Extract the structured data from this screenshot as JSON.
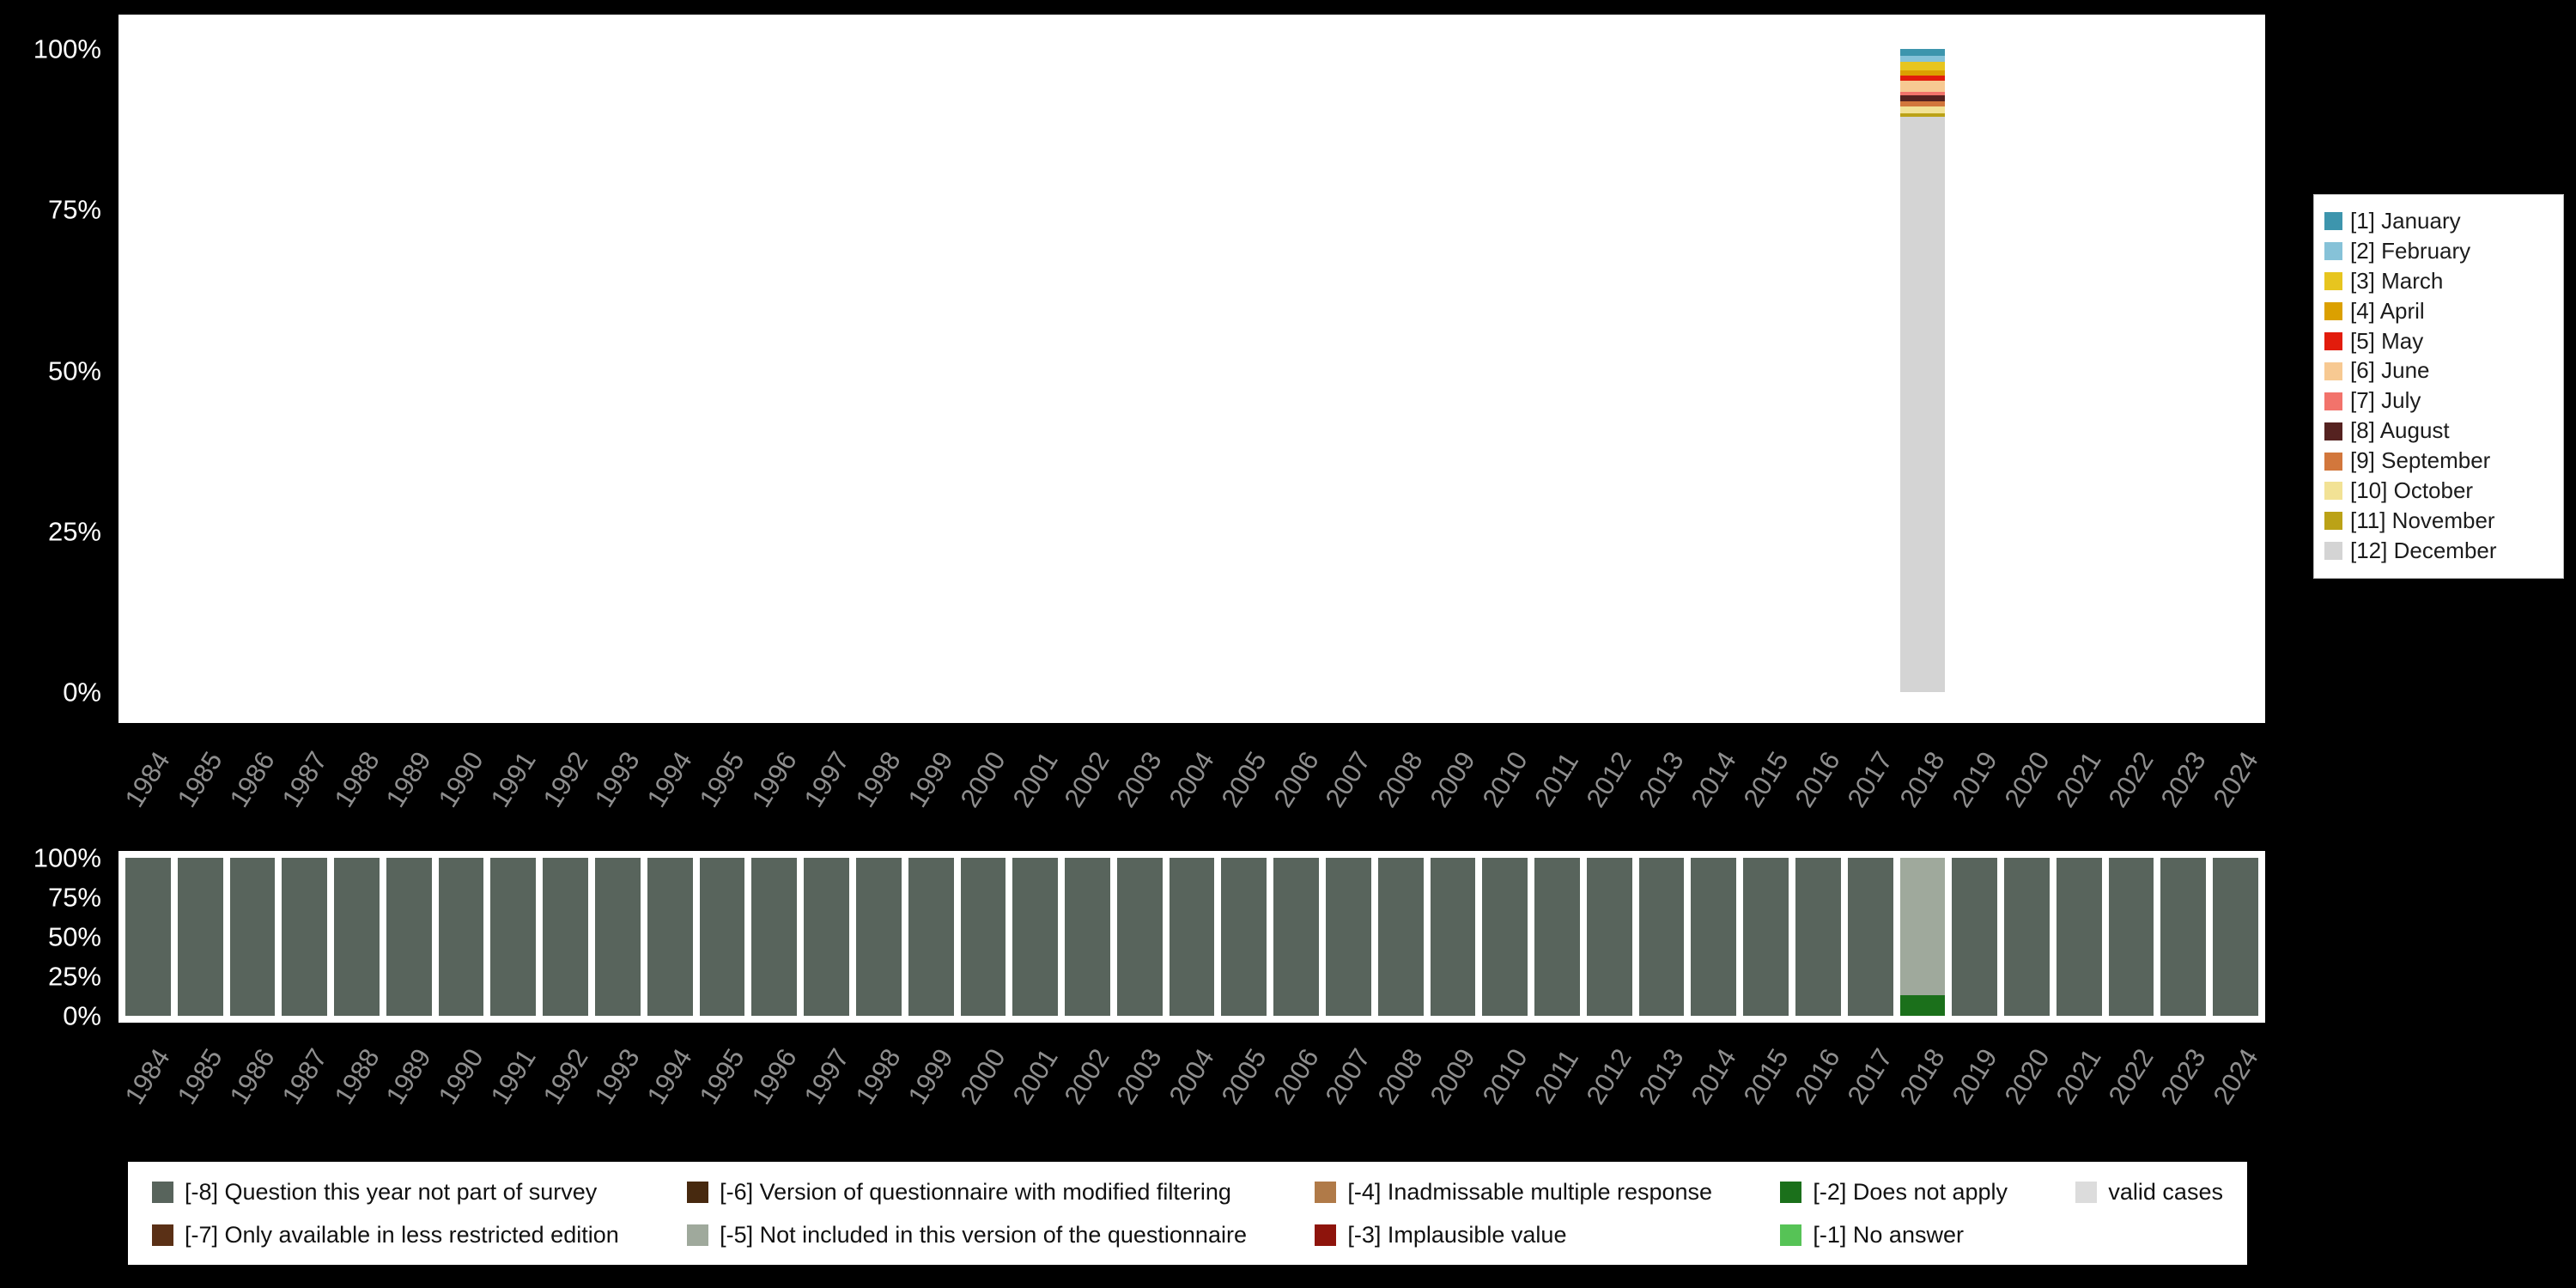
{
  "colors": {
    "background": "#000000",
    "panel": "#ffffff",
    "y_tick_text": "#ffffff",
    "year_label_text": "#8f8f8f"
  },
  "years": [
    "1984",
    "1985",
    "1986",
    "1987",
    "1988",
    "1989",
    "1990",
    "1991",
    "1992",
    "1993",
    "1994",
    "1995",
    "1996",
    "1997",
    "1998",
    "1999",
    "2000",
    "2001",
    "2002",
    "2003",
    "2004",
    "2005",
    "2006",
    "2007",
    "2008",
    "2009",
    "2010",
    "2011",
    "2012",
    "2013",
    "2014",
    "2015",
    "2016",
    "2017",
    "2018",
    "2019",
    "2020",
    "2021",
    "2022",
    "2023",
    "2024"
  ],
  "months_legend": [
    {
      "label": "[1] January",
      "color": "#3d95ad"
    },
    {
      "label": "[2] February",
      "color": "#86c2d8"
    },
    {
      "label": "[3] March",
      "color": "#e7c51f"
    },
    {
      "label": "[4] April",
      "color": "#dba000"
    },
    {
      "label": "[5] May",
      "color": "#e21c0c"
    },
    {
      "label": "[6] June",
      "color": "#f7c992"
    },
    {
      "label": "[7] July",
      "color": "#f2736b"
    },
    {
      "label": "[8] August",
      "color": "#552220"
    },
    {
      "label": "[9] September",
      "color": "#d2773c"
    },
    {
      "label": "[10] October",
      "color": "#f2e295"
    },
    {
      "label": "[11] November",
      "color": "#bba217"
    },
    {
      "label": "[12] December",
      "color": "#d4d4d4"
    }
  ],
  "missing_legend": [
    {
      "label": "[-8] Question this year not part of survey",
      "color": "#58645c"
    },
    {
      "label": "[-7] Only available in less restricted edition",
      "color": "#5a3016"
    },
    {
      "label": "[-6] Version of questionnaire with modified filtering",
      "color": "#47290f"
    },
    {
      "label": "[-5] Not included in this version of the questionnaire",
      "color": "#9fa99c"
    },
    {
      "label": "[-4] Inadmissable multiple response",
      "color": "#b07a48"
    },
    {
      "label": "[-3] Implausible value",
      "color": "#8e140c"
    },
    {
      "label": "[-2] Does not apply",
      "color": "#1b701b"
    },
    {
      "label": "[-1] No answer",
      "color": "#56c356"
    },
    {
      "label": "valid cases",
      "color": "#dcdcdc"
    }
  ],
  "chart_data": [
    {
      "type": "bar",
      "stacked": true,
      "percent_scale": true,
      "title": "",
      "xlabel": "",
      "ylabel": "",
      "ylim": [
        0,
        100
      ],
      "y_ticks": [
        "100%",
        "75%",
        "50%",
        "25%",
        "0%"
      ],
      "legend_position": "right",
      "categories": [
        "1984",
        "1985",
        "1986",
        "1987",
        "1988",
        "1989",
        "1990",
        "1991",
        "1992",
        "1993",
        "1994",
        "1995",
        "1996",
        "1997",
        "1998",
        "1999",
        "2000",
        "2001",
        "2002",
        "2003",
        "2004",
        "2005",
        "2006",
        "2007",
        "2008",
        "2009",
        "2010",
        "2011",
        "2012",
        "2013",
        "2014",
        "2015",
        "2016",
        "2017",
        "2018",
        "2019",
        "2020",
        "2021",
        "2022",
        "2023",
        "2024"
      ],
      "bars": {
        "2018": [
          {
            "label": "[1] January",
            "pct": 1.0
          },
          {
            "label": "[2] February",
            "pct": 1.0
          },
          {
            "label": "[3] March",
            "pct": 1.3
          },
          {
            "label": "[4] April",
            "pct": 0.8
          },
          {
            "label": "[5] May",
            "pct": 0.8
          },
          {
            "label": "[6] June",
            "pct": 1.8
          },
          {
            "label": "[7] July",
            "pct": 0.5
          },
          {
            "label": "[8] August",
            "pct": 1.0
          },
          {
            "label": "[9] September",
            "pct": 0.8
          },
          {
            "label": "[10] October",
            "pct": 1.0
          },
          {
            "label": "[11] November",
            "pct": 0.5
          },
          {
            "label": "[12] December",
            "pct": 89.5
          }
        ]
      }
    },
    {
      "type": "bar",
      "stacked": true,
      "percent_scale": true,
      "title": "",
      "xlabel": "",
      "ylabel": "",
      "ylim": [
        0,
        100
      ],
      "y_ticks": [
        "100%",
        "75%",
        "50%",
        "25%",
        "0%"
      ],
      "legend_position": "bottom",
      "categories": [
        "1984",
        "1985",
        "1986",
        "1987",
        "1988",
        "1989",
        "1990",
        "1991",
        "1992",
        "1993",
        "1994",
        "1995",
        "1996",
        "1997",
        "1998",
        "1999",
        "2000",
        "2001",
        "2002",
        "2003",
        "2004",
        "2005",
        "2006",
        "2007",
        "2008",
        "2009",
        "2010",
        "2011",
        "2012",
        "2013",
        "2014",
        "2015",
        "2016",
        "2017",
        "2018",
        "2019",
        "2020",
        "2021",
        "2022",
        "2023",
        "2024"
      ],
      "bars_default": [
        {
          "label": "[-8] Question this year not part of survey",
          "pct": 100
        }
      ],
      "bars": {
        "2018": [
          {
            "label": "[-5] Not included in this version of the questionnaire",
            "pct": 87
          },
          {
            "label": "[-2] Does not apply",
            "pct": 13
          }
        ]
      }
    }
  ]
}
